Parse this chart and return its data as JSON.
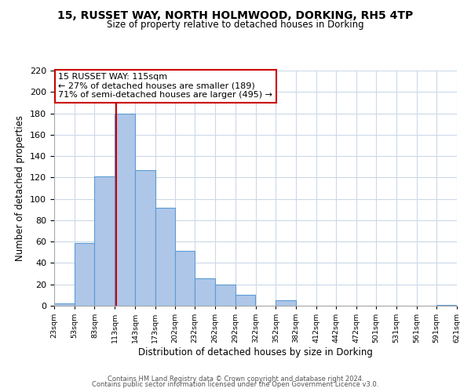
{
  "title1": "15, RUSSET WAY, NORTH HOLMWOOD, DORKING, RH5 4TP",
  "title2": "Size of property relative to detached houses in Dorking",
  "xlabel": "Distribution of detached houses by size in Dorking",
  "ylabel": "Number of detached properties",
  "bar_left_edges": [
    23,
    53,
    83,
    113,
    143,
    173,
    202,
    232,
    262,
    292,
    322,
    352,
    382,
    412,
    442,
    472,
    501,
    531,
    561,
    591
  ],
  "bar_widths": [
    30,
    30,
    30,
    30,
    30,
    29,
    30,
    30,
    30,
    30,
    30,
    30,
    30,
    30,
    30,
    29,
    30,
    30,
    30,
    30
  ],
  "bar_heights": [
    2,
    59,
    121,
    180,
    127,
    92,
    51,
    26,
    20,
    10,
    0,
    5,
    0,
    0,
    0,
    0,
    0,
    0,
    0,
    1
  ],
  "tick_labels": [
    "23sqm",
    "53sqm",
    "83sqm",
    "113sqm",
    "143sqm",
    "173sqm",
    "202sqm",
    "232sqm",
    "262sqm",
    "292sqm",
    "322sqm",
    "352sqm",
    "382sqm",
    "412sqm",
    "442sqm",
    "472sqm",
    "501sqm",
    "531sqm",
    "561sqm",
    "591sqm",
    "621sqm"
  ],
  "bar_color": "#aec6e8",
  "bar_edge_color": "#5b9bd5",
  "vline_x": 115,
  "vline_color": "#cc0000",
  "annotation_title": "15 RUSSET WAY: 115sqm",
  "annotation_line1": "← 27% of detached houses are smaller (189)",
  "annotation_line2": "71% of semi-detached houses are larger (495) →",
  "annotation_box_color": "#ffffff",
  "annotation_box_edge_color": "#cc0000",
  "ylim": [
    0,
    220
  ],
  "yticks": [
    0,
    20,
    40,
    60,
    80,
    100,
    120,
    140,
    160,
    180,
    200,
    220
  ],
  "footer1": "Contains HM Land Registry data © Crown copyright and database right 2024.",
  "footer2": "Contains public sector information licensed under the Open Government Licence v3.0.",
  "bg_color": "#ffffff",
  "grid_color": "#ccd9e8"
}
